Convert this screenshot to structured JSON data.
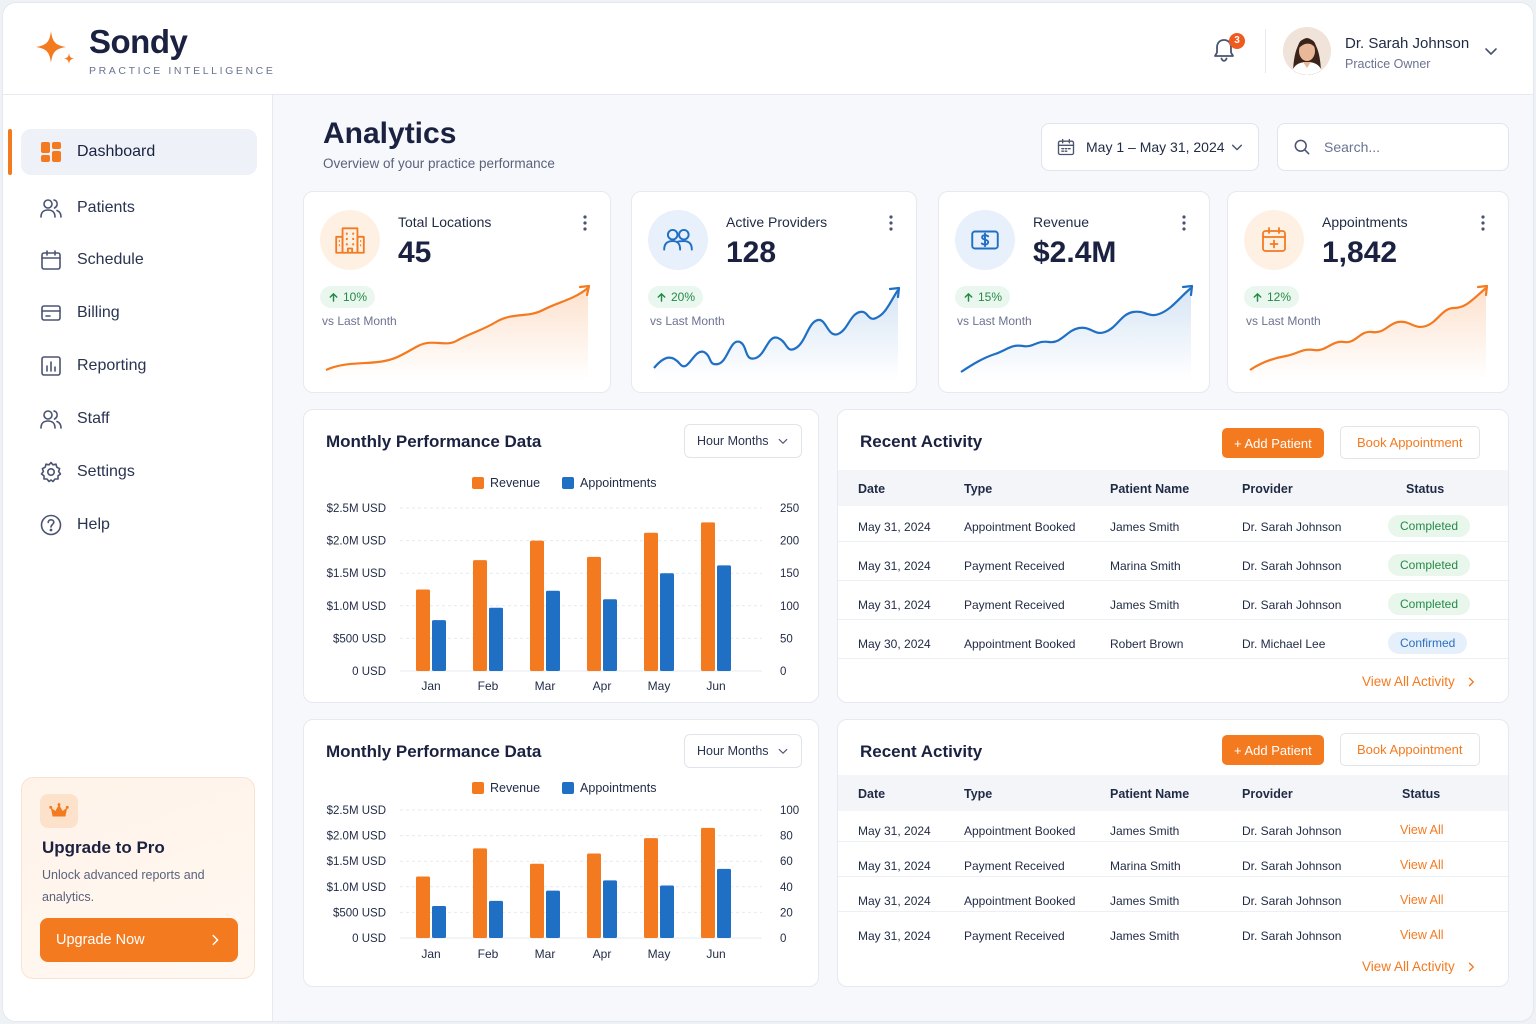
{
  "brand": {
    "name": "Sondy",
    "tagline": "PRACTICE INTELLIGENCE"
  },
  "header": {
    "notification_count": "3",
    "user": {
      "name": "Dr. Sarah Johnson",
      "role": "Practice Owner"
    }
  },
  "sidebar": {
    "items": [
      {
        "label": "Dashboard",
        "icon": "dashboard-icon",
        "active": true
      },
      {
        "label": "Patients",
        "icon": "patients-icon"
      },
      {
        "label": "Schedule",
        "icon": "calendar-icon"
      },
      {
        "label": "Billing",
        "icon": "billing-icon"
      },
      {
        "label": "Reporting",
        "icon": "reporting-icon"
      },
      {
        "label": "Staff",
        "icon": "staff-icon"
      },
      {
        "label": "Settings",
        "icon": "gear-icon"
      },
      {
        "label": "Help",
        "icon": "help-icon"
      }
    ],
    "upgrade": {
      "title": "Upgrade to Pro",
      "text": "Unlock advanced reports and analytics.",
      "button": "Upgrade Now"
    }
  },
  "page": {
    "title": "Analytics",
    "subtitle": "Overview of your practice performance",
    "date_range": "May 1 – May 31, 2024",
    "search_placeholder": "Search..."
  },
  "stats": [
    {
      "label": "Total Locations",
      "value": "45",
      "delta": "10%",
      "vs": "vs Last Month",
      "color": "#f47a20",
      "icon": "building-icon"
    },
    {
      "label": "Active Providers",
      "value": "128",
      "delta": "20%",
      "vs": "vs Last Month",
      "color": "#1f6fc5",
      "icon": "users-icon"
    },
    {
      "label": "Revenue",
      "value": "$2.4M",
      "delta": "15%",
      "vs": "vs Last Month",
      "color": "#1f6fc5",
      "icon": "dollar-icon"
    },
    {
      "label": "Appointments",
      "value": "1,842",
      "delta": "12%",
      "vs": "vs Last Month",
      "color": "#f47a20",
      "icon": "calendar-plus-icon"
    }
  ],
  "charts_panels": [
    {
      "title": "Monthly Performance Data",
      "select": "Hour Months"
    },
    {
      "title": "Monthly Performance Data",
      "select": "Hour Months"
    }
  ],
  "chart_data": [
    {
      "type": "bar",
      "categories": [
        "Jan",
        "Feb",
        "Mar",
        "Apr",
        "May",
        "Jun"
      ],
      "series": [
        {
          "name": "Revenue",
          "axis": "left",
          "color": "#f47a20",
          "values": [
            1.25,
            1.7,
            2.0,
            1.75,
            2.12,
            2.28
          ]
        },
        {
          "name": "Appointments",
          "axis": "right",
          "color": "#1f6fc5",
          "values": [
            78,
            97,
            123,
            110,
            150,
            162
          ]
        }
      ],
      "y_left_ticks": [
        "$2.5M USD",
        "$2.0M USD",
        "$1.5M USD",
        "$1.0M USD",
        "$500 USD",
        "0 USD"
      ],
      "y_left_range": [
        0,
        2.5
      ],
      "y_right_ticks": [
        "250",
        "200",
        "150",
        "100",
        "50",
        "0"
      ],
      "y_right_range": [
        0,
        250
      ],
      "legend": "top-center",
      "grid": true
    },
    {
      "type": "bar",
      "categories": [
        "Jan",
        "Feb",
        "Mar",
        "Apr",
        "May",
        "Jun"
      ],
      "series": [
        {
          "name": "Revenue",
          "axis": "left",
          "color": "#f47a20",
          "values": [
            1.2,
            1.75,
            1.45,
            1.65,
            1.95,
            2.15
          ]
        },
        {
          "name": "Appointments",
          "axis": "right",
          "color": "#1f6fc5",
          "values": [
            25,
            29,
            37,
            45,
            41,
            54
          ]
        }
      ],
      "y_left_ticks": [
        "$2.5M USD",
        "$2.0M USD",
        "$1.5M USD",
        "$1.0M USD",
        "$500 USD",
        "0 USD"
      ],
      "y_left_range": [
        0,
        2.5
      ],
      "y_right_ticks": [
        "100",
        "80",
        "60",
        "40",
        "20",
        "0"
      ],
      "y_right_range": [
        0,
        100
      ],
      "legend": "top-center",
      "grid": true
    }
  ],
  "activity_panels": [
    {
      "title": "Recent Activity",
      "add_label": "+ Add Patient",
      "book_label": "Book Appointment",
      "columns": [
        "Date",
        "Type",
        "Patient Name",
        "Provider",
        "Status"
      ],
      "rows": [
        {
          "date": "May 31, 2024",
          "type": "Appointment Booked",
          "patient": "James Smith",
          "provider": "Dr. Sarah Johnson",
          "status": "Completed",
          "kind": "completed"
        },
        {
          "date": "May 31, 2024",
          "type": "Payment Received",
          "patient": "Marina Smith",
          "provider": "Dr. Sarah Johnson",
          "status": "Completed",
          "kind": "completed"
        },
        {
          "date": "May 31, 2024",
          "type": "Payment Received",
          "patient": "James Smith",
          "provider": "Dr. Sarah Johnson",
          "status": "Completed",
          "kind": "completed"
        },
        {
          "date": "May 30, 2024",
          "type": "Appointment Booked",
          "patient": "Robert Brown",
          "provider": "Dr. Michael Lee",
          "status": "Confirmed",
          "kind": "confirmed"
        }
      ],
      "view_all": "View All Activity"
    },
    {
      "title": "Recent Activity",
      "add_label": "+ Add Patient",
      "book_label": "Book Appointment",
      "columns": [
        "Date",
        "Type",
        "Patient Name",
        "Provider",
        "Status"
      ],
      "rows": [
        {
          "date": "May 31, 2024",
          "type": "Appointment Booked",
          "patient": "James Smith",
          "provider": "Dr. Sarah Johnson",
          "status": "View All",
          "kind": "link"
        },
        {
          "date": "May 31, 2024",
          "type": "Payment Received",
          "patient": "Marina Smith",
          "provider": "Dr. Sarah Johnson",
          "status": "View All",
          "kind": "link"
        },
        {
          "date": "May 31, 2024",
          "type": "Appointment Booked",
          "patient": "James Smith",
          "provider": "Dr. Sarah Johnson",
          "status": "View All",
          "kind": "link"
        },
        {
          "date": "May 31, 2024",
          "type": "Payment Received",
          "patient": "James Smith",
          "provider": "Dr. Sarah Johnson",
          "status": "View All",
          "kind": "link"
        }
      ],
      "view_all": "View All Activity"
    }
  ]
}
